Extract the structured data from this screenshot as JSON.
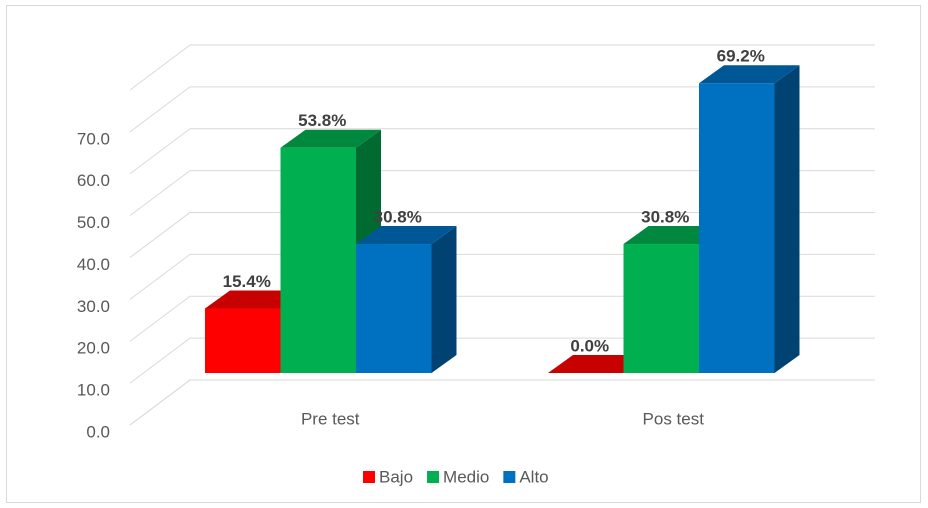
{
  "chart_data": {
    "type": "bar3d",
    "categories": [
      "Pre test",
      "Pos test"
    ],
    "series": [
      {
        "name": "Bajo",
        "color": "#ff0000",
        "values": [
          15.4,
          0.0
        ],
        "value_labels": [
          "15.4%",
          "0.0%"
        ]
      },
      {
        "name": "Medio",
        "color": "#00b050",
        "values": [
          53.8,
          30.8
        ],
        "value_labels": [
          "53.8%",
          "30.8%"
        ]
      },
      {
        "name": "Alto",
        "color": "#0070c0",
        "values": [
          30.8,
          69.2
        ],
        "value_labels": [
          "30.8%",
          "69.2%"
        ]
      }
    ],
    "ylim": [
      0,
      80
    ],
    "yticks": [
      {
        "value": 0,
        "label": "0.0"
      },
      {
        "value": 10,
        "label": "10.0"
      },
      {
        "value": 20,
        "label": "20.0"
      },
      {
        "value": 30,
        "label": "30.0"
      },
      {
        "value": 40,
        "label": "40.0"
      },
      {
        "value": 50,
        "label": "50.0"
      },
      {
        "value": 60,
        "label": "60.0"
      },
      {
        "value": 70,
        "label": "70.0"
      }
    ],
    "grid": true,
    "legend": "bottom"
  }
}
